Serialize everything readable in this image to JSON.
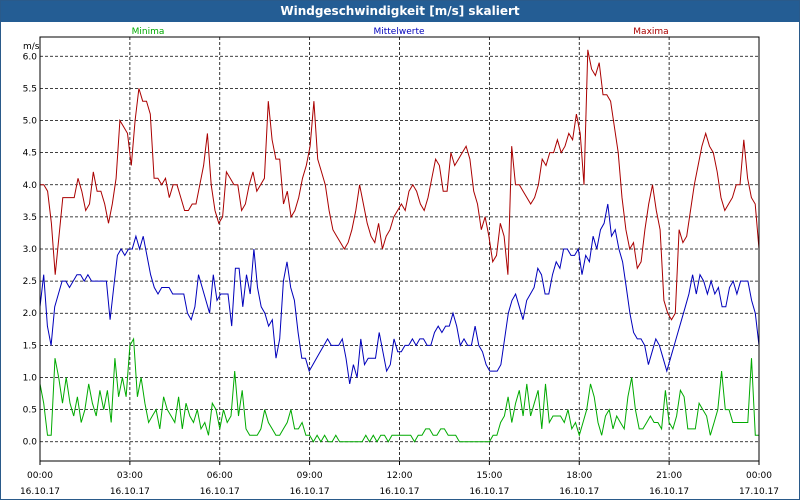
{
  "window": {
    "title": "Windgeschwindigkeit [m/s] skaliert"
  },
  "chart_data": {
    "type": "line",
    "title": "Windgeschwindigkeit [m/s] skaliert",
    "ylabel": "m/s",
    "xlabel": "",
    "ylim": [
      -0.3,
      6.3
    ],
    "yticks": [
      "0.0",
      "0.5",
      "1.0",
      "1.5",
      "2.0",
      "2.5",
      "3.0",
      "3.5",
      "4.0",
      "4.5",
      "5.0",
      "5.5",
      "6.0"
    ],
    "xlim_hours": [
      0,
      24
    ],
    "xticks": [
      {
        "time": "00:00",
        "date": "16.10.17"
      },
      {
        "time": "03:00",
        "date": "16.10.17"
      },
      {
        "time": "06:00",
        "date": "16.10.17"
      },
      {
        "time": "09:00",
        "date": "16.10.17"
      },
      {
        "time": "12:00",
        "date": "16.10.17"
      },
      {
        "time": "15:00",
        "date": "16.10.17"
      },
      {
        "time": "18:00",
        "date": "16.10.17"
      },
      {
        "time": "21:00",
        "date": "16.10.17"
      },
      {
        "time": "00:00",
        "date": "17.10.17"
      }
    ],
    "grid": true,
    "legend_placement": "top",
    "series": [
      {
        "name": "Minima",
        "color": "#00aa00",
        "values": [
          0.9,
          0.6,
          0.1,
          0.1,
          1.3,
          1.0,
          0.6,
          1.0,
          0.6,
          0.4,
          0.7,
          0.3,
          0.5,
          0.9,
          0.6,
          0.4,
          0.8,
          0.5,
          0.8,
          0.3,
          1.3,
          0.7,
          1.0,
          0.7,
          1.5,
          1.6,
          0.7,
          1.0,
          0.6,
          0.3,
          0.4,
          0.5,
          0.2,
          0.7,
          0.5,
          0.4,
          0.3,
          0.7,
          0.2,
          0.6,
          0.4,
          0.3,
          0.5,
          0.2,
          0.3,
          0.1,
          0.6,
          0.5,
          0.2,
          0.5,
          0.3,
          0.4,
          1.1,
          0.4,
          0.8,
          0.2,
          0.1,
          0.1,
          0.1,
          0.2,
          0.5,
          0.3,
          0.2,
          0.1,
          0.1,
          0.2,
          0.3,
          0.5,
          0.2,
          0.2,
          0.3,
          0.1,
          0.1,
          0.0,
          0.1,
          0.0,
          0.1,
          0.0,
          0.0,
          0.1,
          0.0,
          0.0,
          0.0,
          0.0,
          0.0,
          0.0,
          0.0,
          0.1,
          0.0,
          0.1,
          0.0,
          0.1,
          0.1,
          0.0,
          0.1,
          0.1,
          0.1,
          0.1,
          0.1,
          0.1,
          0.0,
          0.1,
          0.1,
          0.2,
          0.2,
          0.1,
          0.1,
          0.2,
          0.2,
          0.1,
          0.1,
          0.1,
          0.0,
          0.0,
          0.0,
          0.0,
          0.0,
          0.0,
          0.0,
          0.0,
          0.0,
          0.1,
          0.1,
          0.3,
          0.4,
          0.7,
          0.3,
          0.6,
          0.8,
          0.4,
          0.9,
          0.4,
          0.6,
          0.8,
          0.2,
          0.9,
          0.3,
          0.4,
          0.4,
          0.4,
          0.3,
          0.5,
          0.2,
          0.3,
          0.1,
          0.3,
          0.5,
          0.9,
          0.7,
          0.3,
          0.1,
          0.4,
          0.5,
          0.2,
          0.4,
          0.3,
          0.2,
          0.7,
          1.0,
          0.5,
          0.2,
          0.2,
          0.3,
          0.4,
          0.3,
          0.3,
          0.2,
          0.8,
          0.3,
          0.2,
          0.4,
          0.8,
          0.7,
          0.2,
          0.2,
          0.2,
          0.6,
          0.5,
          0.4,
          0.1,
          0.3,
          0.5,
          1.1,
          0.5,
          0.5,
          0.3,
          0.3,
          0.3,
          0.3,
          0.3,
          1.3,
          0.1,
          0.1
        ]
      },
      {
        "name": "Mittelwerte",
        "color": "#0000bb",
        "values": [
          2.1,
          2.6,
          1.8,
          1.5,
          2.1,
          2.3,
          2.5,
          2.5,
          2.4,
          2.5,
          2.6,
          2.6,
          2.5,
          2.6,
          2.5,
          2.5,
          2.5,
          2.5,
          2.5,
          1.9,
          2.4,
          2.9,
          3.0,
          2.9,
          3.0,
          3.0,
          3.2,
          3.0,
          3.2,
          2.9,
          2.6,
          2.4,
          2.3,
          2.4,
          2.4,
          2.4,
          2.3,
          2.3,
          2.3,
          2.3,
          2.0,
          1.9,
          2.1,
          2.6,
          2.4,
          2.2,
          2.0,
          2.6,
          2.2,
          2.3,
          2.3,
          2.3,
          1.8,
          2.7,
          2.7,
          2.1,
          2.6,
          2.3,
          3.0,
          2.4,
          2.1,
          2.0,
          1.8,
          1.9,
          1.3,
          1.6,
          2.5,
          2.8,
          2.4,
          2.2,
          1.7,
          1.3,
          1.3,
          1.1,
          1.2,
          1.3,
          1.4,
          1.5,
          1.6,
          1.5,
          1.5,
          1.5,
          1.6,
          1.3,
          0.9,
          1.2,
          1.0,
          1.6,
          1.2,
          1.3,
          1.3,
          1.3,
          1.7,
          1.4,
          1.1,
          1.2,
          1.6,
          1.4,
          1.4,
          1.5,
          1.5,
          1.6,
          1.5,
          1.6,
          1.6,
          1.5,
          1.5,
          1.7,
          1.8,
          1.7,
          1.8,
          1.8,
          2.0,
          1.8,
          1.5,
          1.6,
          1.5,
          1.5,
          1.8,
          1.5,
          1.4,
          1.2,
          1.1,
          1.1,
          1.1,
          1.2,
          1.6,
          2.0,
          2.2,
          2.3,
          2.1,
          1.9,
          2.2,
          2.3,
          2.4,
          2.7,
          2.6,
          2.3,
          2.3,
          2.6,
          2.8,
          2.7,
          3.0,
          3.0,
          2.9,
          2.9,
          3.0,
          2.6,
          2.9,
          2.8,
          3.2,
          3.0,
          3.3,
          3.4,
          3.7,
          3.2,
          3.3,
          3.0,
          2.8,
          2.4,
          2.0,
          1.7,
          1.6,
          1.6,
          1.5,
          1.2,
          1.4,
          1.6,
          1.5,
          1.3,
          1.1,
          1.3,
          1.5,
          1.7,
          1.9,
          2.1,
          2.3,
          2.6,
          2.3,
          2.6,
          2.5,
          2.3,
          2.5,
          2.3,
          2.4,
          2.1,
          2.1,
          2.4,
          2.5,
          2.3,
          2.5,
          2.5,
          2.5,
          2.2,
          2.0,
          1.5
        ]
      },
      {
        "name": "Maxima",
        "color": "#aa0000",
        "values": [
          4.0,
          4.0,
          3.9,
          3.4,
          2.6,
          3.2,
          3.8,
          3.8,
          3.8,
          3.8,
          4.1,
          3.9,
          3.6,
          3.7,
          4.2,
          3.9,
          3.9,
          3.7,
          3.4,
          3.7,
          4.1,
          5.0,
          4.9,
          4.8,
          4.3,
          5.0,
          5.5,
          5.3,
          5.3,
          5.1,
          4.1,
          4.1,
          4.0,
          4.1,
          3.8,
          4.0,
          4.0,
          3.8,
          3.6,
          3.6,
          3.7,
          3.7,
          4.0,
          4.3,
          4.8,
          4.0,
          3.6,
          3.4,
          3.5,
          4.2,
          4.1,
          4.0,
          4.0,
          3.6,
          3.7,
          4.0,
          4.2,
          3.9,
          4.0,
          4.1,
          5.3,
          4.7,
          4.4,
          4.4,
          3.7,
          3.9,
          3.5,
          3.6,
          3.8,
          4.1,
          4.3,
          4.6,
          5.3,
          4.4,
          4.2,
          4.0,
          3.6,
          3.3,
          3.2,
          3.1,
          3.0,
          3.1,
          3.3,
          3.6,
          4.0,
          3.7,
          3.4,
          3.2,
          3.1,
          3.4,
          3.0,
          3.2,
          3.3,
          3.5,
          3.6,
          3.7,
          3.6,
          3.9,
          4.0,
          3.9,
          3.7,
          3.6,
          3.8,
          4.1,
          4.4,
          4.3,
          3.9,
          3.9,
          4.5,
          4.3,
          4.4,
          4.5,
          4.6,
          4.4,
          3.9,
          3.7,
          3.3,
          3.5,
          3.2,
          2.8,
          2.9,
          3.4,
          3.2,
          2.6,
          4.6,
          4.0,
          4.0,
          3.9,
          3.8,
          3.7,
          3.8,
          4.0,
          4.4,
          4.3,
          4.5,
          4.5,
          4.7,
          4.5,
          4.6,
          4.8,
          4.7,
          5.1,
          4.8,
          4.0,
          6.1,
          5.8,
          5.7,
          5.9,
          5.4,
          5.4,
          5.3,
          4.9,
          4.5,
          3.8,
          3.3,
          3.0,
          3.1,
          2.7,
          2.8,
          3.3,
          3.7,
          4.0,
          3.6,
          3.3,
          2.2,
          2.0,
          1.9,
          2.0,
          3.3,
          3.1,
          3.2,
          3.6,
          4.0,
          4.3,
          4.6,
          4.8,
          4.6,
          4.5,
          4.2,
          3.8,
          3.6,
          3.7,
          3.8,
          4.0,
          4.0,
          4.7,
          4.1,
          3.8,
          3.7,
          3.0
        ]
      }
    ]
  }
}
